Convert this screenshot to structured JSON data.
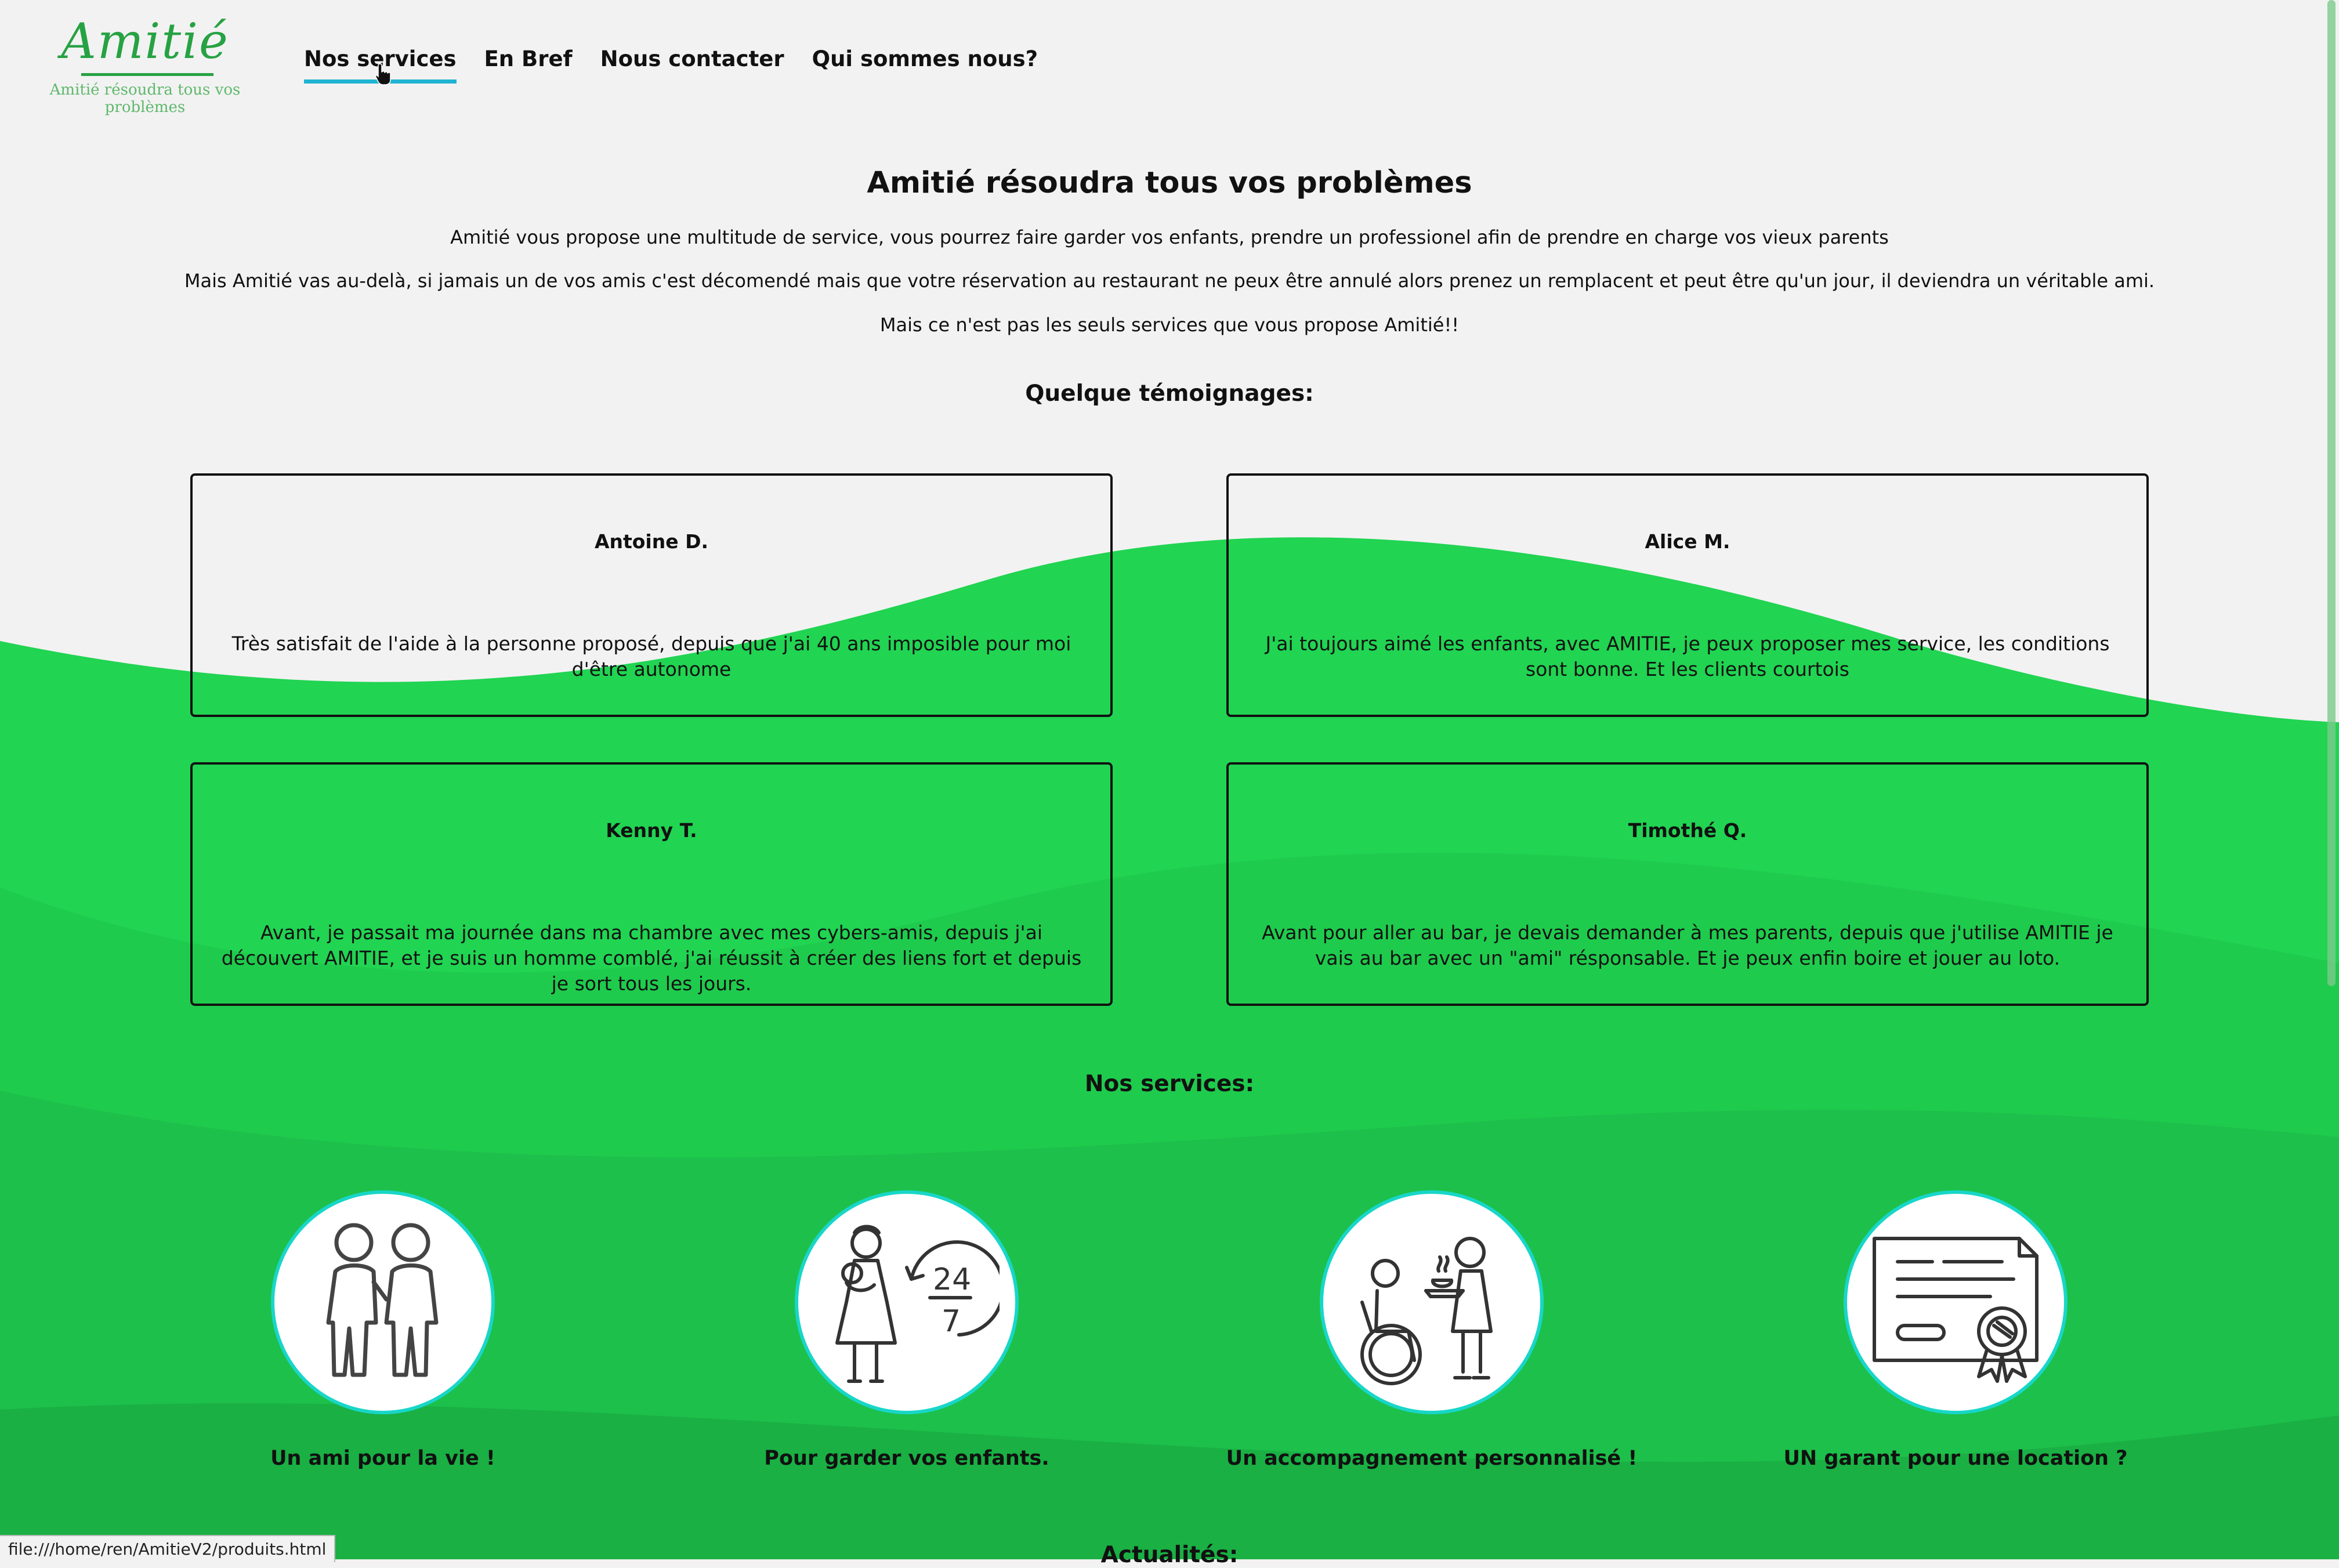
{
  "header": {
    "logo_name": "Amitié",
    "logo_tagline": "Amitié résoudra tous vos problèmes",
    "nav": [
      {
        "label": "Nos services",
        "active": true
      },
      {
        "label": "En Bref",
        "active": false
      },
      {
        "label": "Nous contacter",
        "active": false
      },
      {
        "label": "Qui sommes nous?",
        "active": false
      }
    ]
  },
  "intro": {
    "title": "Amitié résoudra tous vos problèmes",
    "paragraphs": [
      "Amitié vous propose une multitude de service, vous pourrez faire garder vos enfants, prendre un professionel afin de prendre en charge vos vieux parents",
      "Mais Amitié vas au-delà, si jamais un de vos amis c'est décomendé mais que votre réservation au restaurant ne peux être annulé alors prenez un remplacent et peut être qu'un jour, il deviendra un véritable ami.",
      "Mais ce n'est pas les seuls services que vous propose Amitié!!"
    ]
  },
  "testimonials": {
    "heading": "Quelque témoignages:",
    "items": [
      {
        "name": "Antoine D.",
        "quote": "Très satisfait de l'aide à la personne proposé, depuis que j'ai 40 ans imposible pour moi d'être autonome"
      },
      {
        "name": "Alice M.",
        "quote": "J'ai toujours aimé les enfants, avec AMITIE, je peux proposer mes service, les conditions sont bonne. Et les clients courtois"
      },
      {
        "name": "Kenny T.",
        "quote": "Avant, je passait ma journée dans ma chambre avec mes cybers-amis, depuis j'ai découvert AMITIE, et je suis un homme comblé, j'ai réussit à créer des liens fort et depuis je sort tous les jours."
      },
      {
        "name": "Timothé Q.",
        "quote": "Avant pour aller au bar, je devais demander à mes parents, depuis que j'utilise AMITIE je vais au bar avec un \"ami\" résponsable. Et je peux enfin boire et jouer au loto."
      }
    ]
  },
  "services": {
    "heading": "Nos services:",
    "items": [
      {
        "label": "Un ami pour la vie !",
        "icon": "friends-icon"
      },
      {
        "label": "Pour garder vos enfants.",
        "icon": "babysitter-24-7-icon"
      },
      {
        "label": "Un accompagnement personnalisé !",
        "icon": "elderly-care-icon"
      },
      {
        "label": "UN garant pour une location ?",
        "icon": "certificate-icon"
      }
    ]
  },
  "news": {
    "heading": "Actualités:"
  },
  "status_bar": "file:///home/ren/AmitieV2/produits.html",
  "colors": {
    "brand_green": "#27a243",
    "wave_green": "#21d452",
    "nav_underline": "#20b4d2",
    "circle_border": "#18d6c8"
  }
}
